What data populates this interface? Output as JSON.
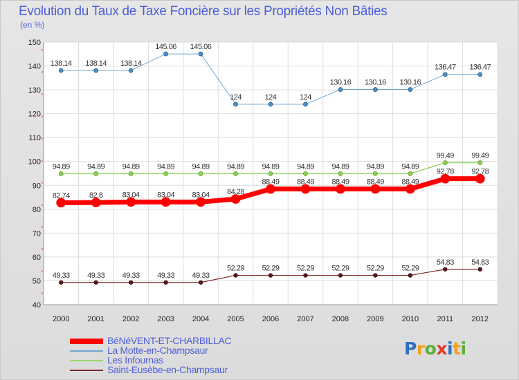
{
  "title": "Evolution du Taux de Taxe Foncière sur les Propriétés Non Bâties",
  "unit_label": "(en %)",
  "brand": {
    "name": "Proxiti",
    "letters": [
      "P",
      "r",
      "o",
      "x",
      "i",
      "t",
      "i"
    ],
    "colors": [
      "#2f6fc4",
      "#f0a020",
      "#5fae3a",
      "#e03a2a",
      "#2f6fc4",
      "#f0a020",
      "#5fae3a"
    ]
  },
  "chart_data": {
    "type": "line",
    "title": "Evolution du Taux de Taxe Foncière sur les Propriétés Non Bâties",
    "ylabel": "(en %)",
    "xlabel": "",
    "ylim": [
      40,
      150
    ],
    "yticks": [
      40,
      50,
      60,
      70,
      80,
      90,
      100,
      110,
      120,
      130,
      140,
      150
    ],
    "grid": true,
    "legend_position": "bottom-left",
    "x": [
      2000,
      2001,
      2002,
      2003,
      2004,
      2005,
      2006,
      2007,
      2008,
      2009,
      2010,
      2011,
      2012
    ],
    "series": [
      {
        "name": "BéNéVENT-ET-CHARBILLAC",
        "color": "#ff0000",
        "values": [
          82.74,
          82.8,
          83.04,
          83.04,
          83.04,
          84.28,
          88.49,
          88.49,
          88.49,
          88.49,
          88.49,
          92.78,
          92.78
        ],
        "labels": [
          "82.74",
          "82.8",
          "83.04",
          "83.04",
          "83.04",
          "84.28",
          "88.49",
          "88.49",
          "88.49",
          "88.49",
          "88.49",
          "92.78",
          "92.78"
        ]
      },
      {
        "name": "La Motte-en-Champsaur",
        "color": "#6fa7d6",
        "values": [
          138.14,
          138.14,
          138.14,
          145.06,
          145.06,
          124,
          124,
          124,
          130.16,
          130.16,
          130.16,
          136.47,
          136.47
        ],
        "labels": [
          "138.14",
          "138.14",
          "138.14",
          "145.06",
          "145.06",
          "124",
          "124",
          "124",
          "130.16",
          "130.16",
          "130.16",
          "136.47",
          "136.47"
        ]
      },
      {
        "name": "Les Infournas",
        "color": "#9ad86a",
        "values": [
          94.89,
          94.89,
          94.89,
          94.89,
          94.89,
          94.89,
          94.89,
          94.89,
          94.89,
          94.89,
          94.89,
          99.49,
          99.49
        ],
        "labels": [
          "94.89",
          "94.89",
          "94.89",
          "94.89",
          "94.89",
          "94.89",
          "94.89",
          "94.89",
          "94.89",
          "94.89",
          "94.89",
          "99.49",
          "99.49"
        ]
      },
      {
        "name": "Saint-Eusèbe-en-Champsaur",
        "color": "#7a2a2a",
        "values": [
          49.33,
          49.33,
          49.33,
          49.33,
          49.33,
          52.29,
          52.29,
          52.29,
          52.29,
          52.29,
          52.29,
          54.83,
          54.83
        ],
        "labels": [
          "49.33",
          "49.33",
          "49.33",
          "49.33",
          "49.33",
          "52.29",
          "52.29",
          "52.29",
          "52.29",
          "52.29",
          "52.29",
          "54.83",
          "54.83"
        ]
      }
    ]
  }
}
